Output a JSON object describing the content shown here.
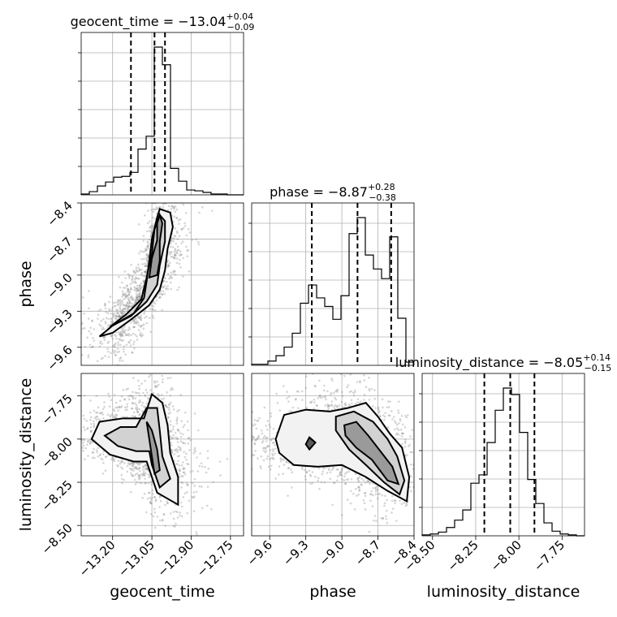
{
  "chart_data": {
    "type": "corner",
    "parameters": [
      {
        "name": "geocent_time",
        "label": "geocent_time",
        "range": [
          -13.32,
          -12.7
        ],
        "ticks": [
          -13.2,
          -13.05,
          -12.9,
          -12.75
        ],
        "tick_labels": [
          "−13.20",
          "−13.05",
          "−12.90",
          "−12.75"
        ]
      },
      {
        "name": "phase",
        "label": "phase",
        "range": [
          -9.75,
          -8.4
        ],
        "ticks": [
          -9.6,
          -9.3,
          -9.0,
          -8.7,
          -8.4
        ],
        "tick_labels": [
          "−9.6",
          "−9.3",
          "−9.0",
          "−8.7",
          "−8.4"
        ]
      },
      {
        "name": "luminosity_distance",
        "label": "luminosity_distance",
        "range": [
          -8.56,
          -7.62
        ],
        "ticks": [
          -8.5,
          -8.25,
          -8.0,
          -7.75
        ],
        "tick_labels": [
          "−8.50",
          "−8.25",
          "−8.00",
          "−7.75"
        ]
      }
    ],
    "titles": [
      {
        "param": "geocent_time",
        "prefix": "geocent_time = −13.04",
        "plus": "+0.04",
        "minus": "−0.09"
      },
      {
        "param": "phase",
        "prefix": "phase = −8.87",
        "plus": "+0.28",
        "minus": "−0.38"
      },
      {
        "param": "luminosity_distance",
        "prefix": "luminosity_distance = −8.05",
        "plus": "+0.14",
        "minus": "−0.15"
      }
    ],
    "histograms": [
      {
        "param": "geocent_time",
        "quantiles": [
          -13.13,
          -13.04,
          -13.0
        ],
        "bin_edges": [
          -13.32,
          -13.289,
          -13.258,
          -13.227,
          -13.196,
          -13.165,
          -13.134,
          -13.103,
          -13.072,
          -13.041,
          -13.01,
          -12.979,
          -12.948,
          -12.917,
          -12.886,
          -12.855,
          -12.824,
          -12.793,
          -12.762,
          -12.731,
          -12.7
        ],
        "counts": [
          1,
          4,
          11,
          16,
          22,
          23,
          28,
          57,
          73,
          184,
          162,
          33,
          17,
          6,
          5,
          3,
          1,
          1,
          0,
          0
        ]
      },
      {
        "param": "phase",
        "quantiles": [
          -9.25,
          -8.87,
          -8.59
        ],
        "bin_edges": [
          -9.75,
          -9.6825,
          -9.615,
          -9.5475,
          -9.48,
          -9.4125,
          -9.345,
          -9.2775,
          -9.21,
          -9.1425,
          -9.075,
          -9.0075,
          -8.94,
          -8.8725,
          -8.805,
          -8.7375,
          -8.67,
          -8.6025,
          -8.535,
          -8.4675,
          -8.4
        ],
        "counts": [
          1,
          1,
          4,
          9,
          17,
          30,
          58,
          75,
          63,
          55,
          43,
          65,
          123,
          138,
          103,
          90,
          81,
          120,
          44,
          3
        ]
      },
      {
        "param": "luminosity_distance",
        "quantiles": [
          -8.2,
          -8.05,
          -7.91
        ],
        "bin_edges": [
          -8.56,
          -8.513,
          -8.466,
          -8.419,
          -8.372,
          -8.325,
          -8.278,
          -8.231,
          -8.184,
          -8.137,
          -8.09,
          -8.043,
          -7.996,
          -7.949,
          -7.902,
          -7.855,
          -7.808,
          -7.761,
          -7.714,
          -7.667,
          -7.62
        ],
        "counts": [
          1,
          2,
          4,
          9,
          17,
          28,
          57,
          66,
          101,
          136,
          160,
          153,
          112,
          61,
          35,
          14,
          5,
          2,
          1,
          0
        ]
      }
    ],
    "pairs": [
      {
        "x": "geocent_time",
        "y": "phase",
        "contours": [
          [
            [
              -13.25,
              -9.51
            ],
            [
              -13.2,
              -9.42
            ],
            [
              -13.12,
              -9.32
            ],
            [
              -13.08,
              -9.19
            ],
            [
              -13.07,
              -9.05
            ],
            [
              -13.06,
              -8.88
            ],
            [
              -13.05,
              -8.7
            ],
            [
              -13.03,
              -8.52
            ],
            [
              -13.02,
              -8.45
            ],
            [
              -12.98,
              -8.48
            ],
            [
              -12.97,
              -8.6
            ],
            [
              -12.99,
              -8.78
            ],
            [
              -13.0,
              -8.96
            ],
            [
              -13.02,
              -9.12
            ],
            [
              -13.06,
              -9.25
            ],
            [
              -13.13,
              -9.37
            ],
            [
              -13.2,
              -9.48
            ],
            [
              -13.25,
              -9.51
            ]
          ],
          [
            [
              -13.21,
              -9.43
            ],
            [
              -13.15,
              -9.33
            ],
            [
              -13.09,
              -9.2
            ],
            [
              -13.07,
              -9.02
            ],
            [
              -13.05,
              -8.82
            ],
            [
              -13.04,
              -8.62
            ],
            [
              -13.02,
              -8.5
            ],
            [
              -13.0,
              -8.55
            ],
            [
              -13.0,
              -8.72
            ],
            [
              -13.02,
              -8.92
            ],
            [
              -13.03,
              -9.08
            ],
            [
              -13.07,
              -9.22
            ],
            [
              -13.13,
              -9.34
            ],
            [
              -13.21,
              -9.43
            ]
          ],
          [
            [
              -13.06,
              -9.02
            ],
            [
              -13.05,
              -8.86
            ],
            [
              -13.03,
              -8.71
            ],
            [
              -13.03,
              -8.57
            ],
            [
              -13.02,
              -8.5
            ],
            [
              -13.01,
              -8.57
            ],
            [
              -13.02,
              -8.72
            ],
            [
              -13.02,
              -8.88
            ],
            [
              -13.03,
              -9.0
            ],
            [
              -13.06,
              -9.02
            ]
          ]
        ]
      },
      {
        "x": "geocent_time",
        "y": "luminosity_distance",
        "contours": [
          [
            [
              -13.28,
              -8.0
            ],
            [
              -13.25,
              -7.9
            ],
            [
              -13.16,
              -7.88
            ],
            [
              -13.08,
              -7.88
            ],
            [
              -13.05,
              -7.74
            ],
            [
              -13.01,
              -7.79
            ],
            [
              -12.99,
              -7.92
            ],
            [
              -12.98,
              -8.08
            ],
            [
              -12.95,
              -8.22
            ],
            [
              -12.95,
              -8.38
            ],
            [
              -13.03,
              -8.31
            ],
            [
              -13.07,
              -8.13
            ],
            [
              -13.12,
              -8.13
            ],
            [
              -13.21,
              -8.09
            ],
            [
              -13.28,
              -8.0
            ]
          ],
          [
            [
              -13.23,
              -7.98
            ],
            [
              -13.17,
              -7.93
            ],
            [
              -13.11,
              -7.93
            ],
            [
              -13.07,
              -7.82
            ],
            [
              -13.03,
              -7.82
            ],
            [
              -13.02,
              -7.95
            ],
            [
              -13.01,
              -8.1
            ],
            [
              -12.98,
              -8.23
            ],
            [
              -13.02,
              -8.28
            ],
            [
              -13.05,
              -8.15
            ],
            [
              -13.06,
              -8.07
            ],
            [
              -13.11,
              -8.07
            ],
            [
              -13.18,
              -8.04
            ],
            [
              -13.23,
              -7.98
            ]
          ],
          [
            [
              -13.07,
              -7.9
            ],
            [
              -13.06,
              -8.0
            ],
            [
              -13.05,
              -8.1
            ],
            [
              -13.04,
              -8.2
            ],
            [
              -13.02,
              -8.18
            ],
            [
              -13.03,
              -8.06
            ],
            [
              -13.05,
              -7.95
            ],
            [
              -13.07,
              -7.9
            ]
          ]
        ]
      },
      {
        "x": "phase",
        "y": "luminosity_distance",
        "contours": [
          [
            [
              -9.55,
              -8.0
            ],
            [
              -9.48,
              -7.86
            ],
            [
              -9.3,
              -7.83
            ],
            [
              -9.1,
              -7.84
            ],
            [
              -8.95,
              -7.82
            ],
            [
              -8.8,
              -7.79
            ],
            [
              -8.7,
              -7.87
            ],
            [
              -8.6,
              -7.97
            ],
            [
              -8.5,
              -8.05
            ],
            [
              -8.44,
              -8.22
            ],
            [
              -8.46,
              -8.36
            ],
            [
              -8.62,
              -8.3
            ],
            [
              -8.8,
              -8.22
            ],
            [
              -9.0,
              -8.15
            ],
            [
              -9.2,
              -8.16
            ],
            [
              -9.4,
              -8.15
            ],
            [
              -9.52,
              -8.08
            ],
            [
              -9.55,
              -8.0
            ]
          ],
          [
            [
              -9.05,
              -7.87
            ],
            [
              -8.9,
              -7.84
            ],
            [
              -8.74,
              -7.9
            ],
            [
              -8.62,
              -8.0
            ],
            [
              -8.54,
              -8.1
            ],
            [
              -8.48,
              -8.24
            ],
            [
              -8.52,
              -8.32
            ],
            [
              -8.65,
              -8.25
            ],
            [
              -8.8,
              -8.15
            ],
            [
              -8.94,
              -8.06
            ],
            [
              -9.05,
              -7.95
            ],
            [
              -9.05,
              -7.87
            ]
          ],
          [
            [
              -8.98,
              -7.92
            ],
            [
              -8.88,
              -7.9
            ],
            [
              -8.78,
              -7.98
            ],
            [
              -8.68,
              -8.07
            ],
            [
              -8.58,
              -8.16
            ],
            [
              -8.53,
              -8.26
            ],
            [
              -8.62,
              -8.24
            ],
            [
              -8.75,
              -8.12
            ],
            [
              -8.88,
              -8.05
            ],
            [
              -8.97,
              -7.98
            ],
            [
              -8.98,
              -7.92
            ]
          ],
          [
            [
              -9.3,
              -8.03
            ],
            [
              -9.27,
              -7.99
            ],
            [
              -9.22,
              -8.02
            ],
            [
              -9.27,
              -8.06
            ],
            [
              -9.3,
              -8.03
            ]
          ]
        ]
      }
    ],
    "grid": true
  }
}
